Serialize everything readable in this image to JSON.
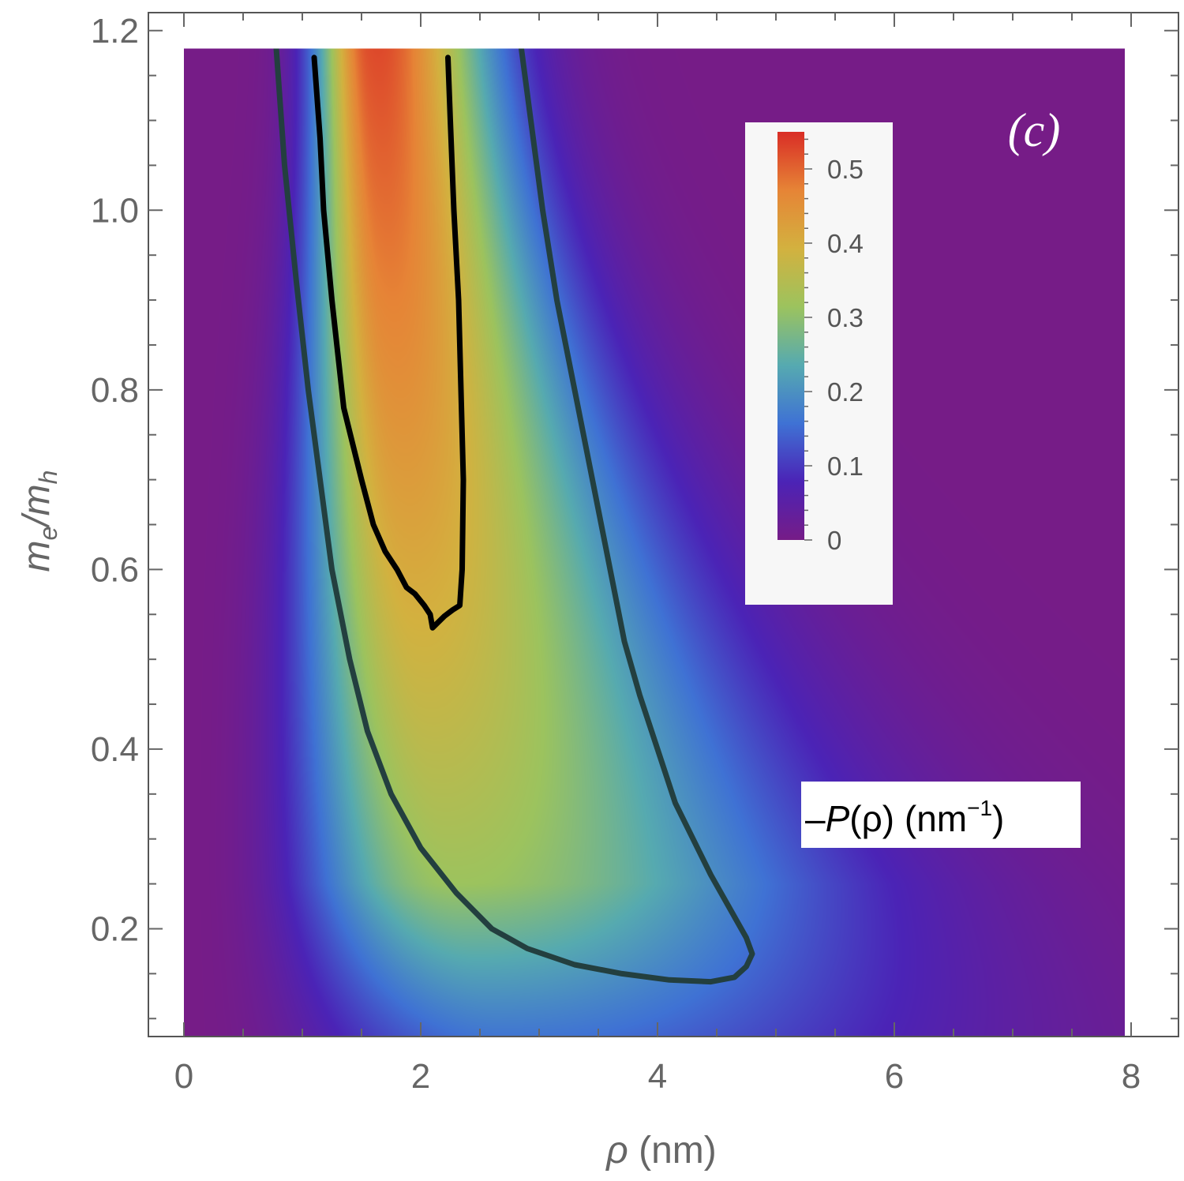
{
  "chart_data": {
    "type": "heatmap",
    "title": "",
    "xlabel": "ρ (nm)",
    "ylabel": "m_e/m_h",
    "xlabel_parts": {
      "symbol": "ρ",
      "unit": " (nm)"
    },
    "ylabel_parts": {
      "m": "m",
      "e": "e",
      "slash": "/",
      "h": "h"
    },
    "panel_label": "(c)",
    "xlim": [
      -0.3,
      8.4
    ],
    "ylim": [
      0.08,
      1.22
    ],
    "plot_x_range": [
      0,
      7.95
    ],
    "plot_y_range": [
      0.08,
      1.18
    ],
    "x_ticks": [
      0,
      2,
      4,
      6,
      8
    ],
    "x_tick_labels": [
      "0",
      "2",
      "4",
      "6",
      "8"
    ],
    "y_ticks": [
      0.2,
      0.4,
      0.6,
      0.8,
      1.0,
      1.2
    ],
    "y_tick_labels": [
      "0.2",
      "0.4",
      "0.6",
      "0.8",
      "1.0",
      "1.2"
    ],
    "colorbar": {
      "label_parts": {
        "dash": "–",
        "p": "P",
        "rho": "(ρ)",
        "unit_open": " (nm",
        "exp": "−1",
        "unit_close": ")"
      },
      "range": [
        0,
        0.55
      ],
      "ticks": [
        0,
        0.1,
        0.2,
        0.3,
        0.4,
        0.5
      ],
      "tick_labels": [
        "0",
        "0.1",
        "0.2",
        "0.3",
        "0.4",
        "0.5"
      ],
      "colors": [
        "#761c87",
        "#4b23b6",
        "#3f72d4",
        "#56aab0",
        "#9cc35e",
        "#d3b13f",
        "#e68436",
        "#d92d26"
      ]
    },
    "contours": [
      {
        "level": 0.2,
        "color": "#233f3f",
        "points": [
          [
            0.78,
            1.18
          ],
          [
            0.85,
            1.05
          ],
          [
            0.95,
            0.92
          ],
          [
            1.05,
            0.8
          ],
          [
            1.15,
            0.7
          ],
          [
            1.25,
            0.6
          ],
          [
            1.4,
            0.5
          ],
          [
            1.55,
            0.42
          ],
          [
            1.75,
            0.35
          ],
          [
            2.0,
            0.29
          ],
          [
            2.3,
            0.24
          ],
          [
            2.6,
            0.2
          ],
          [
            2.9,
            0.178
          ],
          [
            3.3,
            0.16
          ],
          [
            3.7,
            0.15
          ],
          [
            4.1,
            0.143
          ],
          [
            4.45,
            0.141
          ],
          [
            4.65,
            0.146
          ],
          [
            4.75,
            0.158
          ],
          [
            4.8,
            0.172
          ],
          [
            4.75,
            0.19
          ],
          [
            4.6,
            0.225
          ],
          [
            4.45,
            0.26
          ],
          [
            4.3,
            0.3
          ],
          [
            4.15,
            0.34
          ],
          [
            4.0,
            0.4
          ],
          [
            3.85,
            0.46
          ],
          [
            3.72,
            0.52
          ],
          [
            3.6,
            0.6
          ],
          [
            3.45,
            0.7
          ],
          [
            3.3,
            0.8
          ],
          [
            3.15,
            0.9
          ],
          [
            3.03,
            1.0
          ],
          [
            2.93,
            1.1
          ],
          [
            2.85,
            1.18
          ]
        ]
      },
      {
        "level": 0.4,
        "color": "#000000",
        "points": [
          [
            1.1,
            1.17
          ],
          [
            1.15,
            1.08
          ],
          [
            1.18,
            1.0
          ],
          [
            1.25,
            0.9
          ],
          [
            1.35,
            0.78
          ],
          [
            1.5,
            0.7
          ],
          [
            1.6,
            0.65
          ],
          [
            1.7,
            0.62
          ],
          [
            1.8,
            0.6
          ],
          [
            1.88,
            0.58
          ],
          [
            1.95,
            0.573
          ],
          [
            2.03,
            0.56
          ],
          [
            2.08,
            0.55
          ],
          [
            2.1,
            0.535
          ],
          [
            2.2,
            0.548
          ],
          [
            2.27,
            0.555
          ],
          [
            2.33,
            0.56
          ],
          [
            2.35,
            0.6
          ],
          [
            2.36,
            0.7
          ],
          [
            2.34,
            0.8
          ],
          [
            2.32,
            0.9
          ],
          [
            2.28,
            1.0
          ],
          [
            2.25,
            1.1
          ],
          [
            2.23,
            1.17
          ]
        ]
      }
    ]
  }
}
